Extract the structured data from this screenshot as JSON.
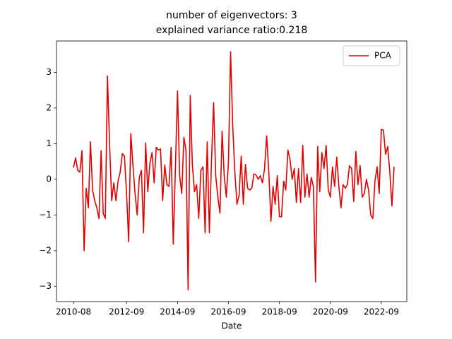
{
  "chart_data": {
    "type": "line",
    "title": "number of eigenvectors: 3",
    "subtitle": "explained variance ratio:0.218",
    "x_label": "Date",
    "x": [
      "2010-08",
      "2010-09",
      "2010-10",
      "2010-11",
      "2010-12",
      "2011-01",
      "2011-02",
      "2011-03",
      "2011-04",
      "2011-05",
      "2011-06",
      "2011-07",
      "2011-08",
      "2011-09",
      "2011-10",
      "2011-11",
      "2011-12",
      "2012-01",
      "2012-02",
      "2012-03",
      "2012-04",
      "2012-05",
      "2012-06",
      "2012-07",
      "2012-08",
      "2012-09",
      "2012-10",
      "2012-11",
      "2012-12",
      "2013-01",
      "2013-02",
      "2013-03",
      "2013-04",
      "2013-05",
      "2013-06",
      "2013-07",
      "2013-08",
      "2013-09",
      "2013-10",
      "2013-11",
      "2013-12",
      "2014-01",
      "2014-02",
      "2014-03",
      "2014-04",
      "2014-05",
      "2014-06",
      "2014-07",
      "2014-08",
      "2014-09",
      "2014-10",
      "2014-11",
      "2014-12",
      "2015-01",
      "2015-02",
      "2015-03",
      "2015-04",
      "2015-05",
      "2015-06",
      "2015-07",
      "2015-08",
      "2015-09",
      "2015-10",
      "2015-11",
      "2015-12",
      "2016-01",
      "2016-02",
      "2016-03",
      "2016-04",
      "2016-05",
      "2016-06",
      "2016-07",
      "2016-08",
      "2016-09",
      "2016-10",
      "2016-11",
      "2016-12",
      "2017-01",
      "2017-02",
      "2017-03",
      "2017-04",
      "2017-05",
      "2017-06",
      "2017-07",
      "2017-08",
      "2017-09",
      "2017-10",
      "2017-11",
      "2017-12",
      "2018-01",
      "2018-02",
      "2018-03",
      "2018-04",
      "2018-05",
      "2018-06",
      "2018-07",
      "2018-08",
      "2018-09",
      "2018-10",
      "2018-11",
      "2018-12",
      "2019-01",
      "2019-02",
      "2019-03",
      "2019-04",
      "2019-05",
      "2019-06",
      "2019-07",
      "2019-08",
      "2019-09",
      "2019-10",
      "2019-11",
      "2019-12",
      "2020-01",
      "2020-02",
      "2020-03",
      "2020-04",
      "2020-05",
      "2020-06",
      "2020-07",
      "2020-08",
      "2020-09",
      "2020-10",
      "2020-11",
      "2020-12",
      "2021-01",
      "2021-02",
      "2021-03",
      "2021-04",
      "2021-05",
      "2021-06",
      "2021-07",
      "2021-08",
      "2021-09",
      "2021-10",
      "2021-11",
      "2021-12",
      "2022-01",
      "2022-02",
      "2022-03",
      "2022-04",
      "2022-05",
      "2022-06",
      "2022-07",
      "2022-08",
      "2022-09",
      "2022-10",
      "2022-11",
      "2022-12",
      "2023-01",
      "2023-02",
      "2023-03"
    ],
    "series": [
      {
        "name": "PCA",
        "color": "#e00000",
        "values": [
          0.33,
          0.6,
          0.25,
          0.2,
          0.8,
          -2.0,
          -0.25,
          -0.8,
          1.05,
          -0.3,
          -0.6,
          -0.8,
          -1.1,
          0.8,
          -0.95,
          -1.1,
          2.9,
          1.0,
          -0.6,
          -0.1,
          -0.6,
          -0.05,
          0.2,
          0.72,
          0.65,
          -0.4,
          -1.75,
          1.28,
          0.4,
          -0.4,
          -1.0,
          0.05,
          0.25,
          -1.5,
          1.02,
          -0.35,
          0.45,
          0.75,
          -0.1,
          0.9,
          0.82,
          0.85,
          -0.6,
          0.4,
          -0.15,
          -0.2,
          0.9,
          -1.82,
          0.3,
          2.48,
          0.1,
          -0.4,
          1.18,
          0.8,
          -3.1,
          2.35,
          0.4,
          -0.35,
          -0.15,
          -1.1,
          0.25,
          0.35,
          -1.5,
          1.05,
          -1.5,
          0.5,
          2.15,
          0.1,
          -0.5,
          -0.95,
          1.35,
          0.1,
          -0.5,
          0.5,
          3.58,
          1.5,
          0.2,
          -0.7,
          -0.45,
          0.65,
          -0.7,
          0.42,
          -0.25,
          -0.3,
          -0.25,
          0.15,
          0.12,
          0.0,
          0.1,
          -0.1,
          0.3,
          1.22,
          0.2,
          -1.18,
          -0.2,
          -0.7,
          0.1,
          -1.05,
          -1.05,
          -0.05,
          -0.3,
          0.82,
          0.55,
          0.0,
          0.3,
          -0.65,
          0.3,
          -0.65,
          0.95,
          -0.5,
          0.15,
          -0.5,
          0.05,
          -0.2,
          -2.88,
          0.92,
          -0.35,
          0.75,
          0.3,
          0.95,
          -0.3,
          -0.5,
          0.35,
          -0.2,
          0.62,
          -0.2,
          -0.8,
          -0.15,
          -0.25,
          -0.15,
          0.38,
          0.3,
          -0.62,
          0.78,
          -0.15,
          0.38,
          -0.5,
          -0.4,
          0.0,
          -0.3,
          -1.0,
          -1.1,
          -0.05,
          0.35,
          -0.4,
          1.4,
          1.38,
          0.7,
          0.92,
          0.2,
          -0.75,
          0.35
        ]
      }
    ],
    "xlim": [
      "2009-12",
      "2023-09"
    ],
    "xticks": [
      "2010-08",
      "2012-09",
      "2014-09",
      "2016-09",
      "2018-09",
      "2020-09",
      "2022-09"
    ],
    "ylim": [
      -3.43,
      3.88
    ],
    "yticks": [
      {
        "value": -3,
        "label": "−3"
      },
      {
        "value": -2,
        "label": "−2"
      },
      {
        "value": -1,
        "label": "−1"
      },
      0,
      1,
      2,
      3
    ],
    "legend": "upper right",
    "grid": false
  }
}
